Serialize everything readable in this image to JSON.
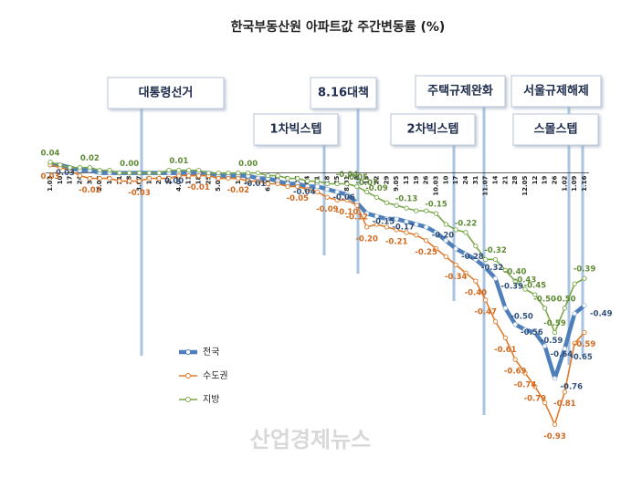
{
  "chart_data": {
    "type": "line",
    "title": "한국부동산원 아파트값 주간변동률 (%)",
    "categories": [
      "1.03",
      "10",
      "17",
      "24",
      "31",
      "2.07",
      "14",
      "21",
      "28",
      "3.07",
      "14",
      "21",
      "28",
      "4.04",
      "11",
      "18",
      "25",
      "5.02",
      "9",
      "16",
      "23",
      "30",
      "6.06",
      "13",
      "20",
      "27",
      "7.04",
      "11",
      "18",
      "25",
      "8.01",
      "8",
      "15",
      "22",
      "29",
      "9.05",
      "13",
      "19",
      "26",
      "10.03",
      "10",
      "17",
      "24",
      "31",
      "11.07",
      "14",
      "21",
      "28",
      "12.05",
      "12",
      "19",
      "26",
      "1.02",
      "1.09",
      "1.16"
    ],
    "ylim": [
      -1.0,
      0.1
    ],
    "series": [
      {
        "name": "전국",
        "color": "#4f7fba",
        "values": [
          0.03,
          0.03,
          0.02,
          0.01,
          0.01,
          0.0,
          0.0,
          0.0,
          0.0,
          0.0,
          0.0,
          0.0,
          0.0,
          0.0,
          0.0,
          0.0,
          0.0,
          -0.01,
          -0.01,
          -0.01,
          -0.01,
          -0.02,
          -0.02,
          -0.03,
          -0.04,
          -0.04,
          -0.05,
          -0.05,
          -0.06,
          -0.07,
          -0.08,
          -0.11,
          -0.15,
          -0.16,
          -0.17,
          -0.17,
          -0.18,
          -0.19,
          -0.2,
          -0.22,
          -0.25,
          -0.28,
          -0.3,
          -0.32,
          -0.35,
          -0.39,
          -0.5,
          -0.56,
          -0.58,
          -0.59,
          -0.64,
          -0.76,
          -0.65,
          -0.52,
          -0.49
        ],
        "value_labels": [
          "0.03",
          null,
          null,
          null,
          null,
          null,
          null,
          null,
          null,
          null,
          null,
          "0.00",
          null,
          null,
          null,
          null,
          null,
          null,
          null,
          "-0.01",
          null,
          null,
          null,
          null,
          "-0.04",
          null,
          null,
          null,
          "-0.06",
          null,
          null,
          null,
          "-0.15",
          null,
          "-0.17",
          null,
          null,
          null,
          "-0.20",
          null,
          null,
          "-0.28",
          null,
          "-0.32",
          null,
          "-0.39",
          "-0.50",
          "-0.56",
          null,
          "-0.59",
          "-0.64",
          "-0.76",
          "-0.65",
          null,
          "-0.49"
        ]
      },
      {
        "name": "수도권",
        "color": "#e07b2a",
        "values": [
          0.03,
          0.02,
          0.01,
          -0.01,
          -0.02,
          -0.02,
          -0.02,
          -0.03,
          -0.03,
          -0.03,
          -0.02,
          -0.02,
          -0.02,
          -0.01,
          -0.01,
          -0.01,
          -0.01,
          -0.02,
          -0.02,
          -0.02,
          -0.03,
          -0.03,
          -0.04,
          -0.04,
          -0.05,
          -0.05,
          -0.06,
          -0.07,
          -0.09,
          -0.1,
          -0.1,
          -0.12,
          -0.2,
          -0.19,
          -0.2,
          -0.21,
          -0.22,
          -0.23,
          -0.25,
          -0.28,
          -0.31,
          -0.34,
          -0.37,
          -0.4,
          -0.47,
          -0.55,
          -0.61,
          -0.69,
          -0.74,
          -0.79,
          -0.85,
          -0.93,
          -0.81,
          -0.63,
          -0.59
        ],
        "value_labels": [
          "0.03",
          null,
          null,
          null,
          "-0.02",
          null,
          null,
          null,
          null,
          "-0.03",
          null,
          null,
          null,
          null,
          null,
          "-0.01",
          null,
          null,
          null,
          "-0.02",
          null,
          null,
          null,
          null,
          null,
          "-0.05",
          null,
          null,
          "-0.09",
          null,
          "-0.10",
          "-0.12",
          "-0.20",
          null,
          null,
          "-0.21",
          null,
          null,
          "-0.25",
          null,
          null,
          "-0.34",
          null,
          "-0.40",
          "-0.47",
          null,
          "-0.61",
          "-0.69",
          "-0.74",
          "-0.79",
          null,
          "-0.93",
          "-0.81",
          null,
          "-0.59"
        ]
      },
      {
        "name": "지방",
        "color": "#7aa84a",
        "values": [
          0.04,
          0.03,
          0.02,
          0.02,
          0.02,
          0.01,
          0.01,
          0.0,
          0.0,
          0.0,
          0.0,
          0.0,
          0.01,
          0.01,
          0.01,
          0.01,
          0.0,
          0.0,
          0.0,
          0.0,
          0.0,
          0.0,
          -0.01,
          -0.01,
          -0.02,
          -0.02,
          -0.03,
          -0.03,
          -0.04,
          -0.04,
          -0.04,
          -0.05,
          -0.07,
          -0.09,
          -0.11,
          -0.12,
          -0.13,
          -0.14,
          -0.14,
          -0.15,
          -0.19,
          -0.21,
          -0.22,
          -0.27,
          -0.32,
          -0.32,
          -0.36,
          -0.4,
          -0.43,
          -0.45,
          -0.5,
          -0.59,
          -0.5,
          -0.41,
          -0.39
        ],
        "value_labels": [
          "0.04",
          null,
          null,
          null,
          "0.02",
          null,
          null,
          null,
          "0.00",
          null,
          null,
          null,
          null,
          "0.01",
          null,
          null,
          null,
          null,
          null,
          null,
          "0.00",
          null,
          null,
          null,
          null,
          null,
          null,
          null,
          null,
          null,
          "-0.04",
          "-0.05",
          "-0.07",
          "-0.09",
          null,
          null,
          "-0.13",
          null,
          null,
          "-0.15",
          null,
          null,
          "-0.22",
          null,
          null,
          "-0.32",
          null,
          "-0.40",
          "-0.43",
          "-0.45",
          "-0.50",
          "-0.59",
          "-0.50",
          null,
          "-0.39"
        ]
      }
    ],
    "annotations": [
      "대통령선거",
      "8.16대책",
      "1차빅스텝",
      "주택규제완화",
      "2차빅스텝",
      "서울규제해제",
      "스몰스텝"
    ],
    "watermark": "산업경제뉴스"
  }
}
